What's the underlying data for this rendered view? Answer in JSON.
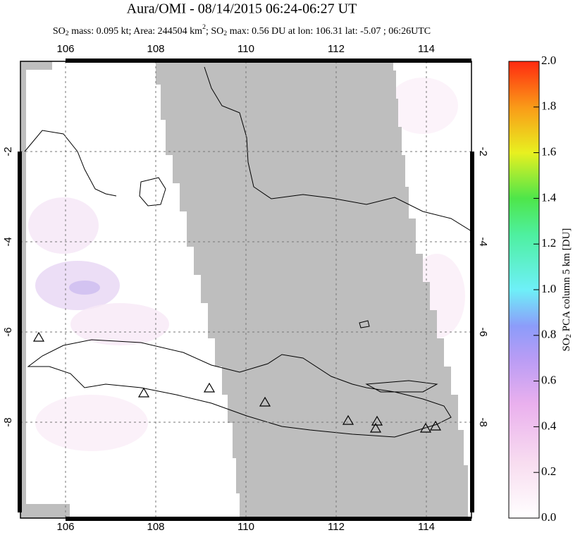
{
  "header": {
    "title": "Aura/OMI - 08/14/2015 06:24-06:27 UT",
    "subtitle": [
      {
        "text": "SO"
      },
      {
        "text": "2",
        "script": "sub"
      },
      {
        "text": " mass: 0.095 kt; Area: 244504 km"
      },
      {
        "text": "2",
        "script": "sup"
      },
      {
        "text": "; SO"
      },
      {
        "text": "2",
        "script": "sub"
      },
      {
        "text": " max: 0.56 DU at lon: 106.31 lat: -5.07 ; 06:26UTC"
      }
    ]
  },
  "map": {
    "lon_range": [
      105,
      115
    ],
    "lat_range": [
      -10.125,
      0
    ],
    "lon_ticks": [
      106,
      108,
      110,
      112,
      114
    ],
    "lat_ticks": [
      -2,
      -4,
      -6,
      -8
    ]
  },
  "colorbar": {
    "label": [
      {
        "text": "SO"
      },
      {
        "text": "2",
        "script": "sub"
      },
      {
        "text": " PCA column 5 km [DU]"
      }
    ],
    "range": [
      0,
      2
    ],
    "ticks": [
      {
        "value": 0,
        "label": "0.0"
      },
      {
        "value": 0.2,
        "label": "0.2"
      },
      {
        "value": 0.4,
        "label": "0.4"
      },
      {
        "value": 0.6,
        "label": "0.6"
      },
      {
        "value": 0.8,
        "label": "0.8"
      },
      {
        "value": 1,
        "label": "1.0"
      },
      {
        "value": 1.2,
        "label": "1.2"
      },
      {
        "value": 1.4,
        "label": "1.4"
      },
      {
        "value": 1.6,
        "label": "1.6"
      },
      {
        "value": 1.8,
        "label": "1.8"
      },
      {
        "value": 2,
        "label": "2.0"
      }
    ]
  }
}
